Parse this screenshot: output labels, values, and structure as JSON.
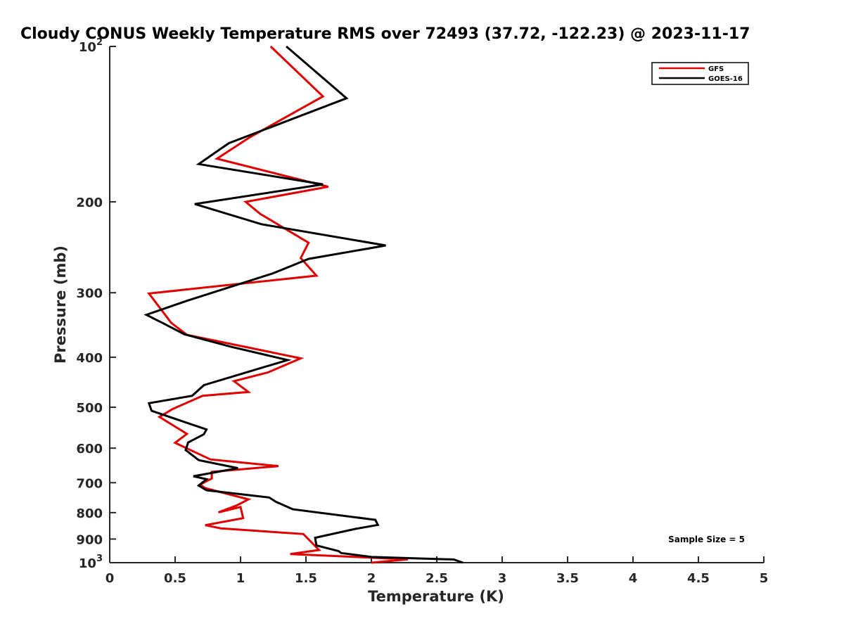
{
  "chart_data": {
    "type": "line",
    "title": "Cloudy CONUS Weekly Temperature RMS over 72493 (37.72, -122.23) @ 2023-11-17",
    "xlabel": "Temperature (K)",
    "ylabel": "Pressure (mb)",
    "xlim": [
      0,
      5
    ],
    "ylim": [
      100,
      1000
    ],
    "y_scale": "log",
    "y_reversed": true,
    "grid": false,
    "legend_position": "top-right",
    "x_ticks": [
      {
        "value": 0,
        "label": "0"
      },
      {
        "value": 0.5,
        "label": "0.5"
      },
      {
        "value": 1,
        "label": "1"
      },
      {
        "value": 1.5,
        "label": "1.5"
      },
      {
        "value": 2,
        "label": "2"
      },
      {
        "value": 2.5,
        "label": "2.5"
      },
      {
        "value": 3,
        "label": "3"
      },
      {
        "value": 3.5,
        "label": "3.5"
      },
      {
        "value": 4,
        "label": "4"
      },
      {
        "value": 4.5,
        "label": "4.5"
      },
      {
        "value": 5,
        "label": "5"
      }
    ],
    "y_ticks": [
      {
        "value": 100,
        "base": "10",
        "exp": "2"
      },
      {
        "value": 200,
        "label": "200"
      },
      {
        "value": 300,
        "label": "300"
      },
      {
        "value": 400,
        "label": "400"
      },
      {
        "value": 500,
        "label": "500"
      },
      {
        "value": 600,
        "label": "600"
      },
      {
        "value": 700,
        "label": "700"
      },
      {
        "value": 800,
        "label": "800"
      },
      {
        "value": 900,
        "label": "900"
      },
      {
        "value": 1000,
        "base": "10",
        "exp": "3"
      }
    ],
    "annotation": "Sample Size = 5",
    "series": [
      {
        "name": "GFS",
        "color": "#e00000",
        "points": [
          [
            1.23,
            100
          ],
          [
            1.63,
            125
          ],
          [
            1.07,
            150
          ],
          [
            0.82,
            165
          ],
          [
            1.67,
            187
          ],
          [
            1.04,
            200
          ],
          [
            1.15,
            211
          ],
          [
            1.52,
            240
          ],
          [
            1.46,
            257
          ],
          [
            1.58,
            278
          ],
          [
            0.3,
            301
          ],
          [
            0.47,
            343
          ],
          [
            0.59,
            362
          ],
          [
            1.46,
            402
          ],
          [
            1.21,
            428
          ],
          [
            0.95,
            445
          ],
          [
            1.06,
            467
          ],
          [
            0.71,
            475
          ],
          [
            0.48,
            504
          ],
          [
            0.38,
            522
          ],
          [
            0.59,
            563
          ],
          [
            0.5,
            586
          ],
          [
            0.77,
            631
          ],
          [
            1.29,
            650
          ],
          [
            0.78,
            667
          ],
          [
            0.78,
            687
          ],
          [
            0.69,
            706
          ],
          [
            0.73,
            717
          ],
          [
            1.06,
            754
          ],
          [
            0.97,
            775
          ],
          [
            0.83,
            799
          ],
          [
            1.0,
            780
          ],
          [
            1.02,
            820
          ],
          [
            0.73,
            846
          ],
          [
            0.85,
            858
          ],
          [
            1.48,
            880
          ],
          [
            1.6,
            945
          ],
          [
            1.38,
            962
          ],
          [
            2.28,
            985
          ],
          [
            2.0,
            1000
          ]
        ]
      },
      {
        "name": "GOES-16",
        "color": "#000000",
        "points": [
          [
            1.35,
            100
          ],
          [
            1.81,
            126
          ],
          [
            0.91,
            154
          ],
          [
            0.68,
            169
          ],
          [
            1.63,
            185
          ],
          [
            0.65,
            202
          ],
          [
            1.16,
            221
          ],
          [
            2.11,
            243
          ],
          [
            1.52,
            258
          ],
          [
            1.25,
            275
          ],
          [
            0.59,
            311
          ],
          [
            0.28,
            331
          ],
          [
            0.41,
            344
          ],
          [
            0.57,
            361
          ],
          [
            0.93,
            382
          ],
          [
            1.36,
            405
          ],
          [
            0.72,
            453
          ],
          [
            0.63,
            475
          ],
          [
            0.3,
            491
          ],
          [
            0.32,
            508
          ],
          [
            0.74,
            552
          ],
          [
            0.72,
            564
          ],
          [
            0.6,
            585
          ],
          [
            0.58,
            605
          ],
          [
            0.68,
            633
          ],
          [
            0.98,
            656
          ],
          [
            0.64,
            680
          ],
          [
            0.74,
            689
          ],
          [
            0.68,
            709
          ],
          [
            0.74,
            724
          ],
          [
            1.22,
            748
          ],
          [
            1.27,
            762
          ],
          [
            1.4,
            788
          ],
          [
            2.03,
            826
          ],
          [
            2.05,
            845
          ],
          [
            1.88,
            860
          ],
          [
            1.57,
            895
          ],
          [
            1.58,
            926
          ],
          [
            1.75,
            950
          ],
          [
            1.77,
            958
          ],
          [
            2.0,
            975
          ],
          [
            2.63,
            986
          ],
          [
            2.7,
            1000
          ]
        ]
      }
    ]
  }
}
